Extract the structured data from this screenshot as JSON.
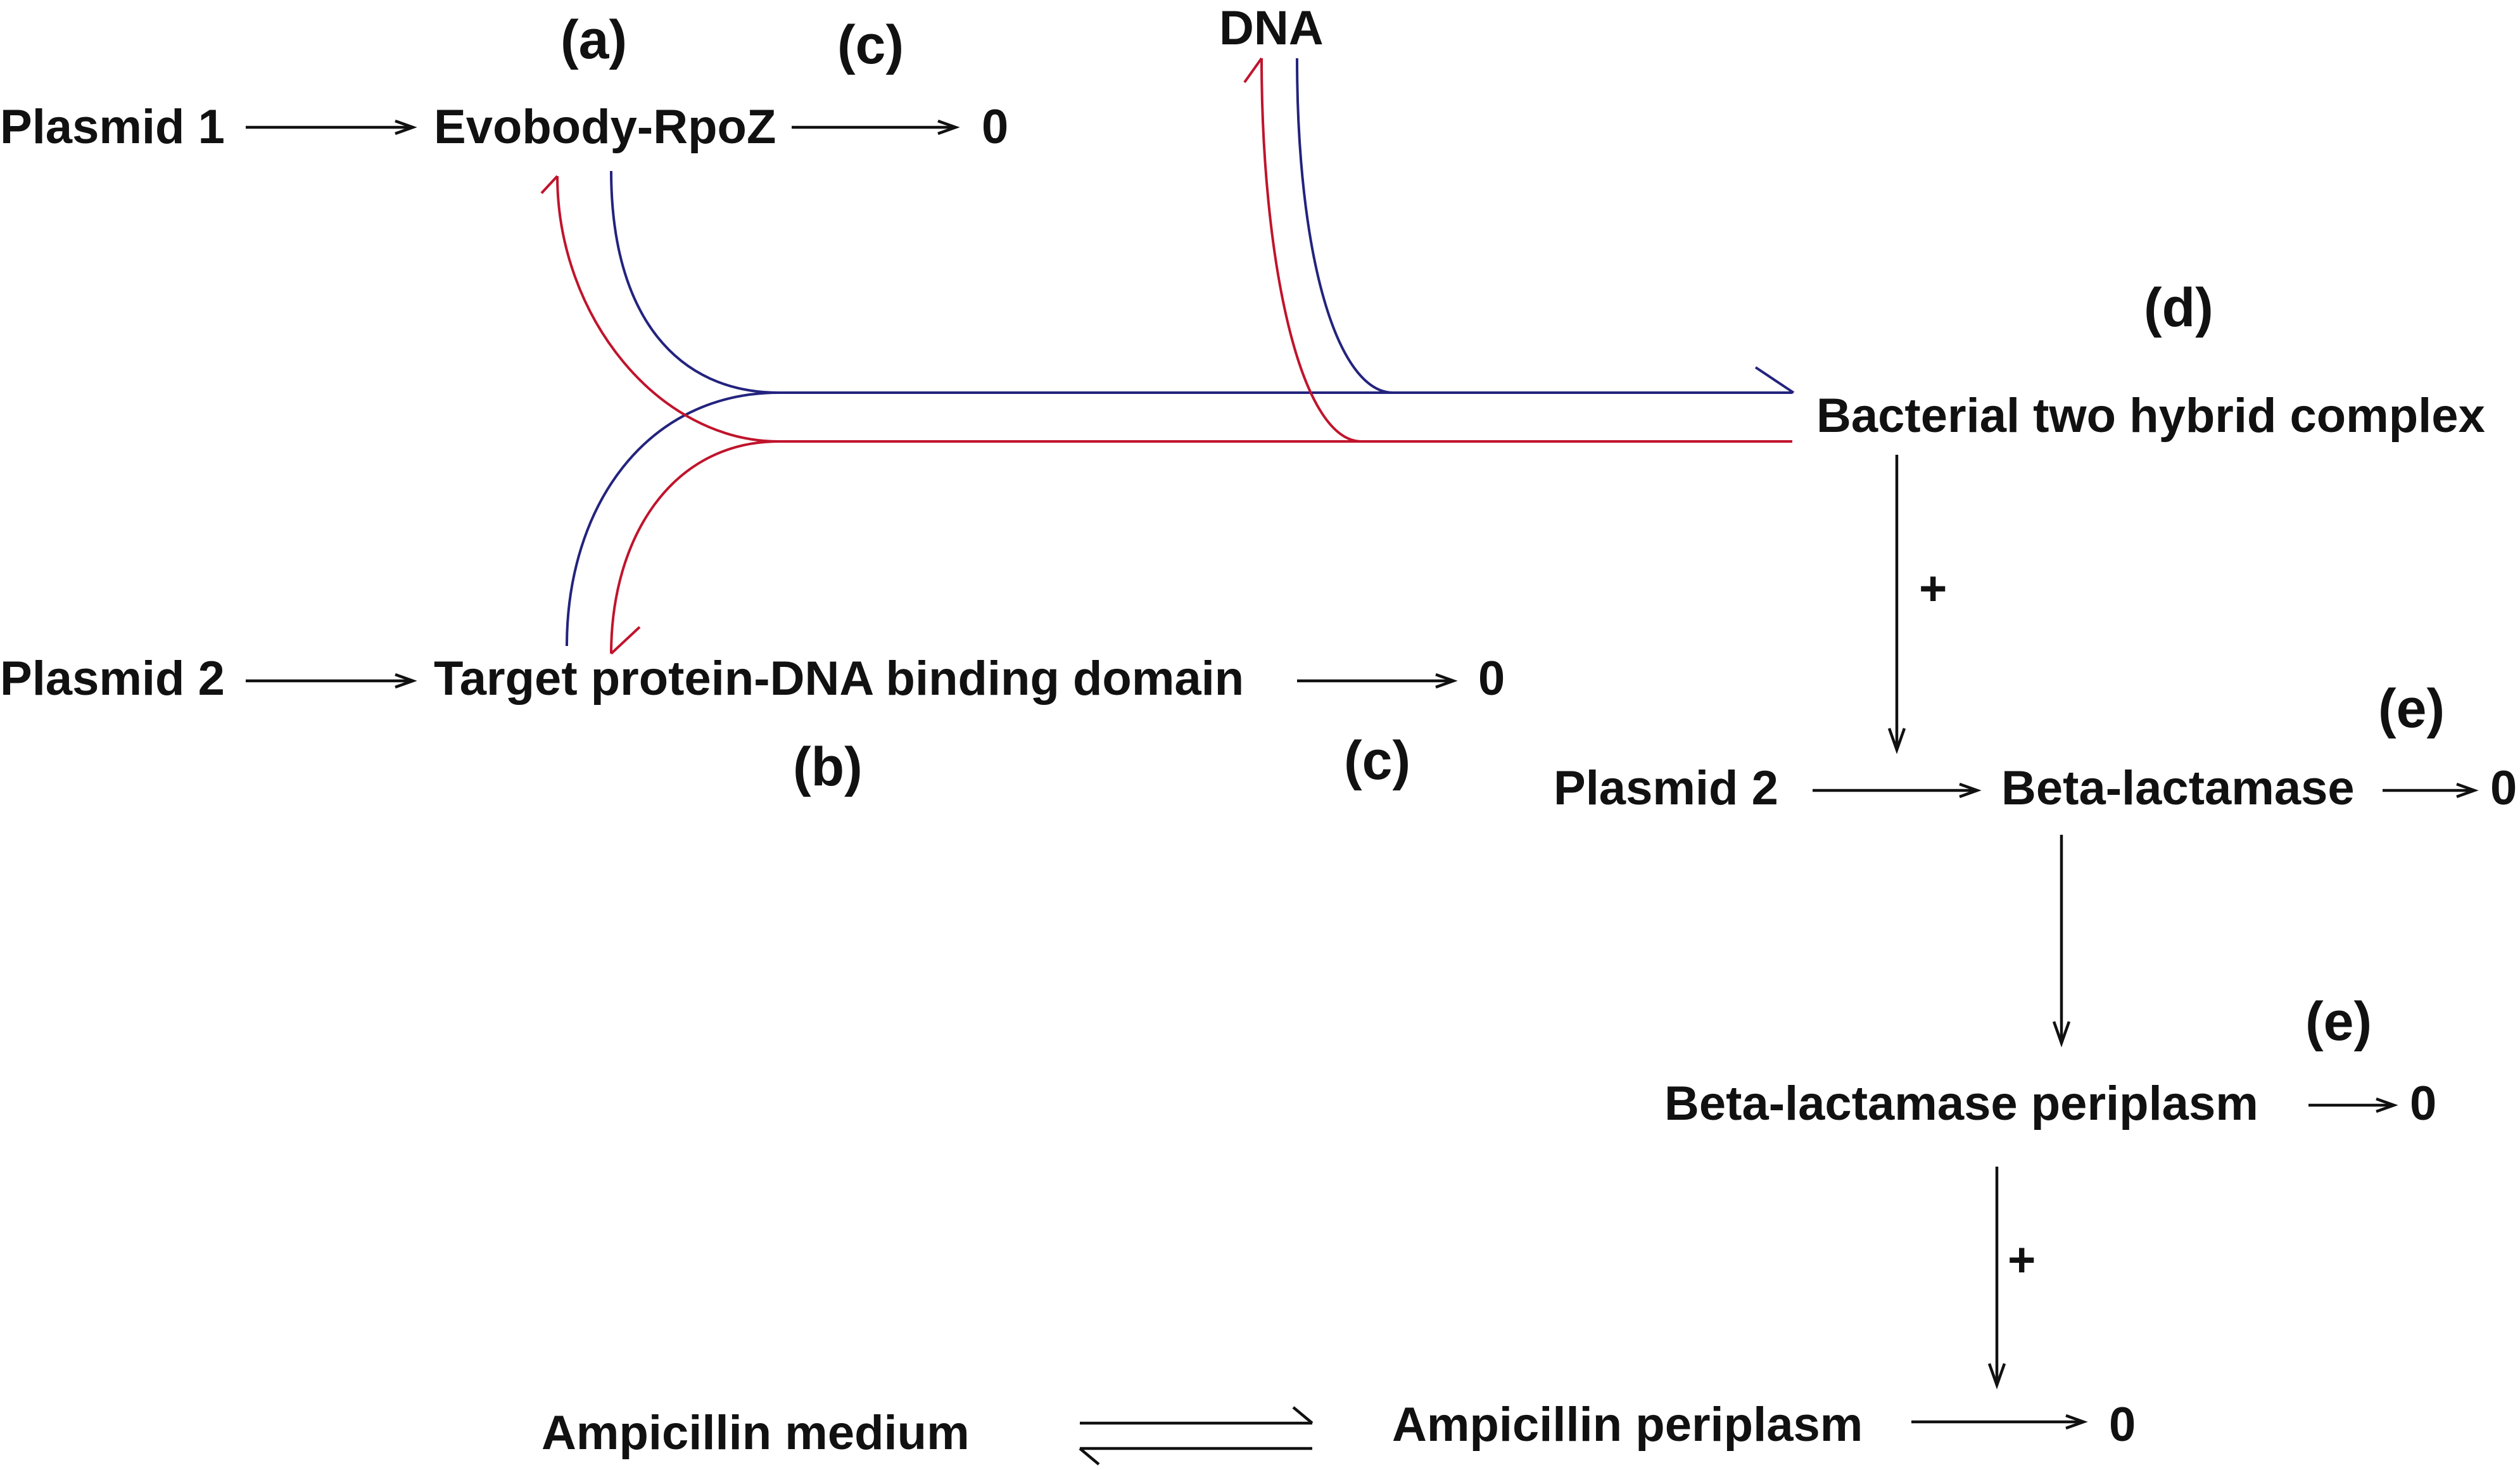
{
  "colors": {
    "binding_forward": "#23237e",
    "binding_reverse": "#c0142c",
    "text": "#111111",
    "background": "#ffffff"
  },
  "nodes": {
    "plasmid1": "Plasmid 1",
    "evobody": "Evobody-RpoZ",
    "plasmid2_top": "Plasmid 2",
    "target": "Target protein-DNA binding domain",
    "dna": "DNA",
    "complex": "Bacterial two hybrid complex",
    "plasmid2_bottom": "Plasmid 2",
    "beta": "Beta-lactamase",
    "beta_peri": "Beta-lactamase periplasm",
    "amp_medium": "Ampicillin medium",
    "amp_peri": "Ampicillin periplasm"
  },
  "tags": {
    "a": "(a)",
    "b": "(b)",
    "c1": "(c)",
    "c2": "(c)",
    "d": "(d)",
    "e1": "(e)",
    "e2": "(e)"
  },
  "sinks": {
    "evobody": "0",
    "target": "0",
    "beta": "0",
    "beta_peri": "0",
    "amp_peri": "0"
  },
  "modifiers": {
    "complex_to_expression": "+",
    "beta_peri_to_degradation": "+"
  }
}
